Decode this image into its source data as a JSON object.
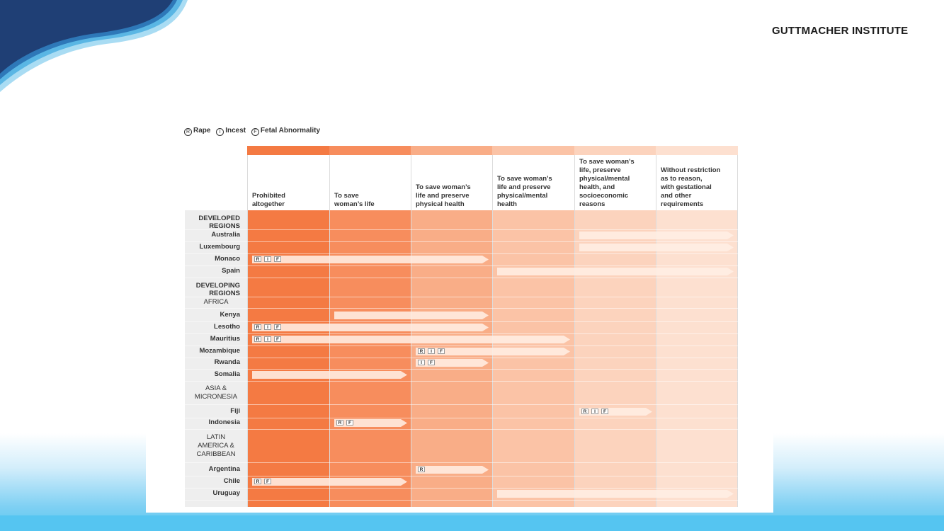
{
  "brand": "GUTTMACHER INSTITUTE",
  "legend": [
    {
      "key": "R",
      "label": "Rape"
    },
    {
      "key": "I",
      "label": "Incest"
    },
    {
      "key": "F",
      "label": "Fetal Abnormality"
    }
  ],
  "columns": [
    {
      "label": "Prohibited\naltogether",
      "color": "#f47a43",
      "header_color": "#f47a43"
    },
    {
      "label": "To save\nwoman’s life",
      "color": "#f78d5d",
      "header_color": "#f78d5d"
    },
    {
      "label": "To save woman’s\nlife and preserve\nphysical health",
      "color": "#f9ad87",
      "header_color": "#f9ad87"
    },
    {
      "label": "To save woman’s\nlife and preserve\nphysical/mental\nhealth",
      "color": "#fbc3a6",
      "header_color": "#fbc3a6"
    },
    {
      "label": "To save woman’s\nlife, preserve\nphysical/mental\nhealth, and\nsocioeconomic\nreasons",
      "color": "#fcd3bd",
      "header_color": "#fcd3bd"
    },
    {
      "label": "Without restriction\nas to reason,\nwith gestational\nand other\nrequirements",
      "color": "#fde0d0",
      "header_color": "#fde0d0"
    }
  ],
  "rows": [
    {
      "label": "DEVELOPED\nREGIONS",
      "type": "heading"
    },
    {
      "label": "Australia",
      "type": "country",
      "from": 4,
      "to": 5,
      "exceptions": []
    },
    {
      "label": "Luxembourg",
      "type": "country",
      "from": 4,
      "to": 5,
      "exceptions": []
    },
    {
      "label": "Monaco",
      "type": "country",
      "from": 0,
      "to": 2,
      "exceptions": [
        "R",
        "I",
        "F"
      ]
    },
    {
      "label": "Spain",
      "type": "country",
      "from": 3,
      "to": 5,
      "exceptions": []
    },
    {
      "label": "DEVELOPING\nREGIONS",
      "type": "heading"
    },
    {
      "label": "AFRICA",
      "type": "subregion"
    },
    {
      "label": "Kenya",
      "type": "country",
      "from": 1,
      "to": 2,
      "exceptions": []
    },
    {
      "label": "Lesotho",
      "type": "country",
      "from": 0,
      "to": 2,
      "exceptions": [
        "R",
        "I",
        "F"
      ]
    },
    {
      "label": "Mauritius",
      "type": "country",
      "from": 0,
      "to": 3,
      "exceptions": [
        "R",
        "I",
        "F"
      ]
    },
    {
      "label": "Mozambique",
      "type": "country",
      "from": 2,
      "to": 3,
      "exceptions": [
        "R",
        "I",
        "F"
      ]
    },
    {
      "label": "Rwanda",
      "type": "country",
      "from": 2,
      "to": 2,
      "exceptions": [
        "I",
        "F"
      ]
    },
    {
      "label": "Somalia",
      "type": "country",
      "from": 0,
      "to": 1,
      "exceptions": []
    },
    {
      "label": "ASIA &\nMICRONESIA",
      "type": "subregion"
    },
    {
      "label": "Fiji",
      "type": "country",
      "from": 4,
      "to": 4,
      "exceptions": [
        "R",
        "I",
        "F"
      ]
    },
    {
      "label": "Indonesia",
      "type": "country",
      "from": 1,
      "to": 1,
      "exceptions": [
        "R",
        "F"
      ]
    },
    {
      "label": "LATIN\nAMERICA &\nCARIBBEAN",
      "type": "subregion"
    },
    {
      "label": "Argentina",
      "type": "country",
      "from": 2,
      "to": 2,
      "exceptions": [
        "R"
      ]
    },
    {
      "label": "Chile",
      "type": "country",
      "from": 0,
      "to": 1,
      "exceptions": [
        "R",
        "F"
      ]
    },
    {
      "label": "Uruguay",
      "type": "country",
      "from": 3,
      "to": 5,
      "exceptions": []
    }
  ]
}
